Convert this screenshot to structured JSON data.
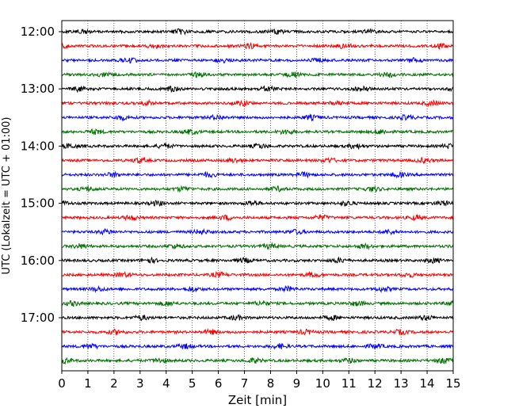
{
  "chart_data": {
    "type": "line",
    "title": "",
    "xlabel": "Zeit  [min]",
    "ylabel": "UTC (Lokalzeit = UTC + 01:00)",
    "xlim": [
      0,
      15
    ],
    "x_ticks": [
      "0",
      "1",
      "2",
      "3",
      "4",
      "5",
      "6",
      "7",
      "8",
      "9",
      "10",
      "11",
      "12",
      "13",
      "14",
      "15"
    ],
    "y_tick_labels": [
      "12:00",
      "13:00",
      "14:00",
      "15:00",
      "16:00",
      "17:00"
    ],
    "trace_start_times": [
      "12:00",
      "12:15",
      "12:30",
      "12:45",
      "13:00",
      "13:15",
      "13:30",
      "13:45",
      "14:00",
      "14:15",
      "14:30",
      "14:45",
      "15:00",
      "15:15",
      "15:30",
      "15:45",
      "16:00",
      "16:15",
      "16:30",
      "16:45",
      "17:00",
      "17:15",
      "17:30",
      "17:45"
    ],
    "trace_colors": [
      "#000000",
      "#ff0000",
      "#0000ff",
      "#007000"
    ],
    "grid": "vertical dotted lines at each minute"
  }
}
